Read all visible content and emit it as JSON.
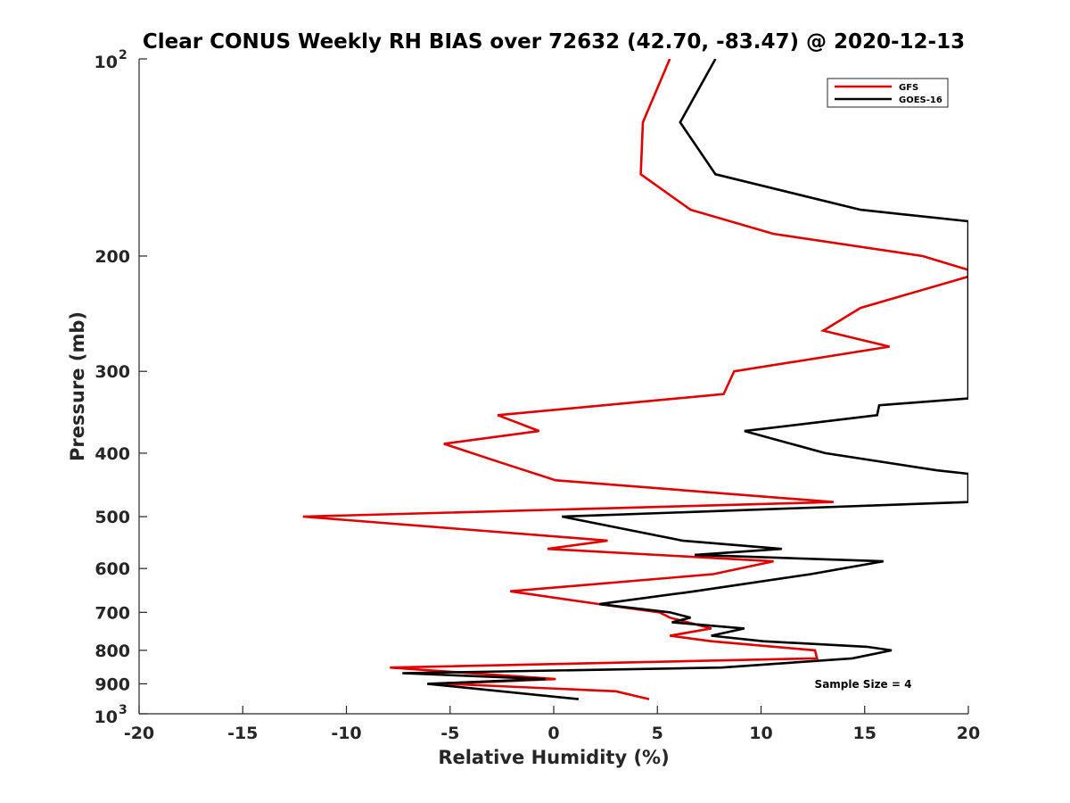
{
  "chart_data": {
    "type": "line",
    "title": "Clear CONUS Weekly RH BIAS over 72632 (42.70, -83.47) @ 2020-12-13",
    "xlabel": "Relative Humidity (%)",
    "ylabel": "Pressure (mb)",
    "xlim": [
      -20,
      20
    ],
    "ylim": [
      100,
      1000
    ],
    "yscale": "log",
    "y_inverted": true,
    "x_ticks": [
      "-20",
      "-15",
      "-10",
      "-5",
      "0",
      "5",
      "10",
      "15",
      "20"
    ],
    "y_ticks": [
      {
        "value": 100,
        "base": "10",
        "exp": "2"
      },
      {
        "value": 200,
        "label": "200"
      },
      {
        "value": 300,
        "label": "300"
      },
      {
        "value": 400,
        "label": "400"
      },
      {
        "value": 500,
        "label": "500"
      },
      {
        "value": 600,
        "label": "600"
      },
      {
        "value": 700,
        "label": "700"
      },
      {
        "value": 800,
        "label": "800"
      },
      {
        "value": 900,
        "label": "900"
      },
      {
        "value": 1000,
        "base": "10",
        "exp": "3"
      }
    ],
    "grid": false,
    "legend_position": "top-right",
    "annotation": "Sample Size = 4",
    "series": [
      {
        "name": "GFS",
        "color": "#e00000",
        "points": [
          [
            5.6,
            100
          ],
          [
            4.3,
            125
          ],
          [
            4.2,
            150
          ],
          [
            6.6,
            170
          ],
          [
            10.6,
            185
          ],
          [
            17.8,
            200
          ],
          [
            20.0,
            210
          ],
          [
            20.0,
            215
          ],
          [
            14.8,
            240
          ],
          [
            13.0,
            260
          ],
          [
            16.2,
            275
          ],
          [
            8.7,
            300
          ],
          [
            8.2,
            325
          ],
          [
            -2.7,
            350
          ],
          [
            -0.7,
            370
          ],
          [
            -5.3,
            387
          ],
          [
            -2.7,
            412
          ],
          [
            0.1,
            440
          ],
          [
            13.5,
            475
          ],
          [
            -12.1,
            500
          ],
          [
            2.6,
            544
          ],
          [
            -0.3,
            560
          ],
          [
            10.6,
            585
          ],
          [
            7.7,
            612
          ],
          [
            -2.1,
            650
          ],
          [
            2.2,
            680
          ],
          [
            5.1,
            700
          ],
          [
            5.6,
            713
          ],
          [
            7.6,
            741
          ],
          [
            5.6,
            760
          ],
          [
            7.6,
            775
          ],
          [
            12.6,
            800
          ],
          [
            12.7,
            823
          ],
          [
            -7.9,
            850
          ],
          [
            0.1,
            885
          ],
          [
            -5.2,
            900
          ],
          [
            3.0,
            924
          ],
          [
            4.6,
            950
          ]
        ]
      },
      {
        "name": "GOES-16",
        "color": "#000000",
        "points": [
          [
            7.8,
            100
          ],
          [
            6.1,
            125
          ],
          [
            7.8,
            150
          ],
          [
            14.8,
            170
          ],
          [
            20.0,
            177
          ],
          [
            20.0,
            330
          ],
          [
            15.7,
            338
          ],
          [
            15.6,
            350
          ],
          [
            9.2,
            370
          ],
          [
            13.1,
            400
          ],
          [
            18.5,
            425
          ],
          [
            20.0,
            430
          ],
          [
            20.0,
            475
          ],
          [
            0.4,
            500
          ],
          [
            6.2,
            544
          ],
          [
            11.0,
            560
          ],
          [
            6.8,
            572
          ],
          [
            15.9,
            585
          ],
          [
            12.4,
            612
          ],
          [
            6.8,
            650
          ],
          [
            2.2,
            680
          ],
          [
            5.6,
            700
          ],
          [
            6.6,
            713
          ],
          [
            5.7,
            725
          ],
          [
            9.2,
            741
          ],
          [
            7.6,
            760
          ],
          [
            10.1,
            775
          ],
          [
            15.1,
            790
          ],
          [
            16.3,
            800
          ],
          [
            14.4,
            823
          ],
          [
            8.1,
            850
          ],
          [
            -7.3,
            867
          ],
          [
            -0.4,
            885
          ],
          [
            -6.1,
            900
          ],
          [
            1.2,
            950
          ]
        ]
      }
    ]
  }
}
